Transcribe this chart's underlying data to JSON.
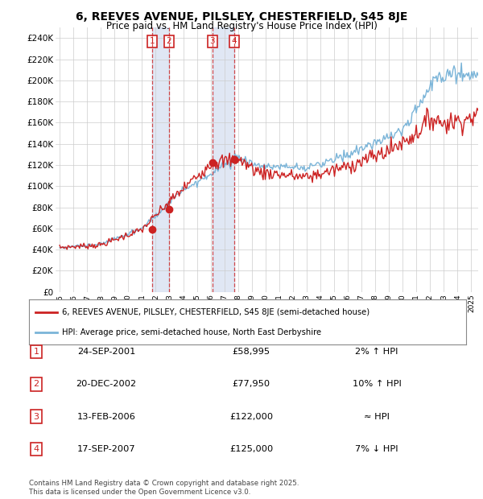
{
  "title": "6, REEVES AVENUE, PILSLEY, CHESTERFIELD, S45 8JE",
  "subtitle": "Price paid vs. HM Land Registry's House Price Index (HPI)",
  "ylabel_ticks": [
    "£0",
    "£20K",
    "£40K",
    "£60K",
    "£80K",
    "£100K",
    "£120K",
    "£140K",
    "£160K",
    "£180K",
    "£200K",
    "£220K",
    "£240K"
  ],
  "ytick_values": [
    0,
    20000,
    40000,
    60000,
    80000,
    100000,
    120000,
    140000,
    160000,
    180000,
    200000,
    220000,
    240000
  ],
  "ylim": [
    0,
    250000
  ],
  "xlim_start": 1994.7,
  "xlim_end": 2025.5,
  "hpi_color": "#7ab4d8",
  "price_color": "#cc2222",
  "grid_color": "#cccccc",
  "bg_color": "#ffffff",
  "legend_line1": "6, REEVES AVENUE, PILSLEY, CHESTERFIELD, S45 8JE (semi-detached house)",
  "legend_line2": "HPI: Average price, semi-detached house, North East Derbyshire",
  "sales": [
    {
      "num": 1,
      "date": "24-SEP-2001",
      "price": 58995,
      "rel": "2% ↑ HPI",
      "year": 2001.73
    },
    {
      "num": 2,
      "date": "20-DEC-2002",
      "price": 77950,
      "rel": "10% ↑ HPI",
      "year": 2002.97
    },
    {
      "num": 3,
      "date": "13-FEB-2006",
      "price": 122000,
      "rel": "≈ HPI",
      "year": 2006.12
    },
    {
      "num": 4,
      "date": "17-SEP-2007",
      "price": 125000,
      "rel": "7% ↓ HPI",
      "year": 2007.71
    }
  ],
  "footer": "Contains HM Land Registry data © Crown copyright and database right 2025.\nThis data is licensed under the Open Government Licence v3.0.",
  "xtick_years": [
    1995,
    1996,
    1997,
    1998,
    1999,
    2000,
    2001,
    2002,
    2003,
    2004,
    2005,
    2006,
    2007,
    2008,
    2009,
    2010,
    2011,
    2012,
    2013,
    2014,
    2015,
    2016,
    2017,
    2018,
    2019,
    2020,
    2021,
    2022,
    2023,
    2024,
    2025
  ]
}
